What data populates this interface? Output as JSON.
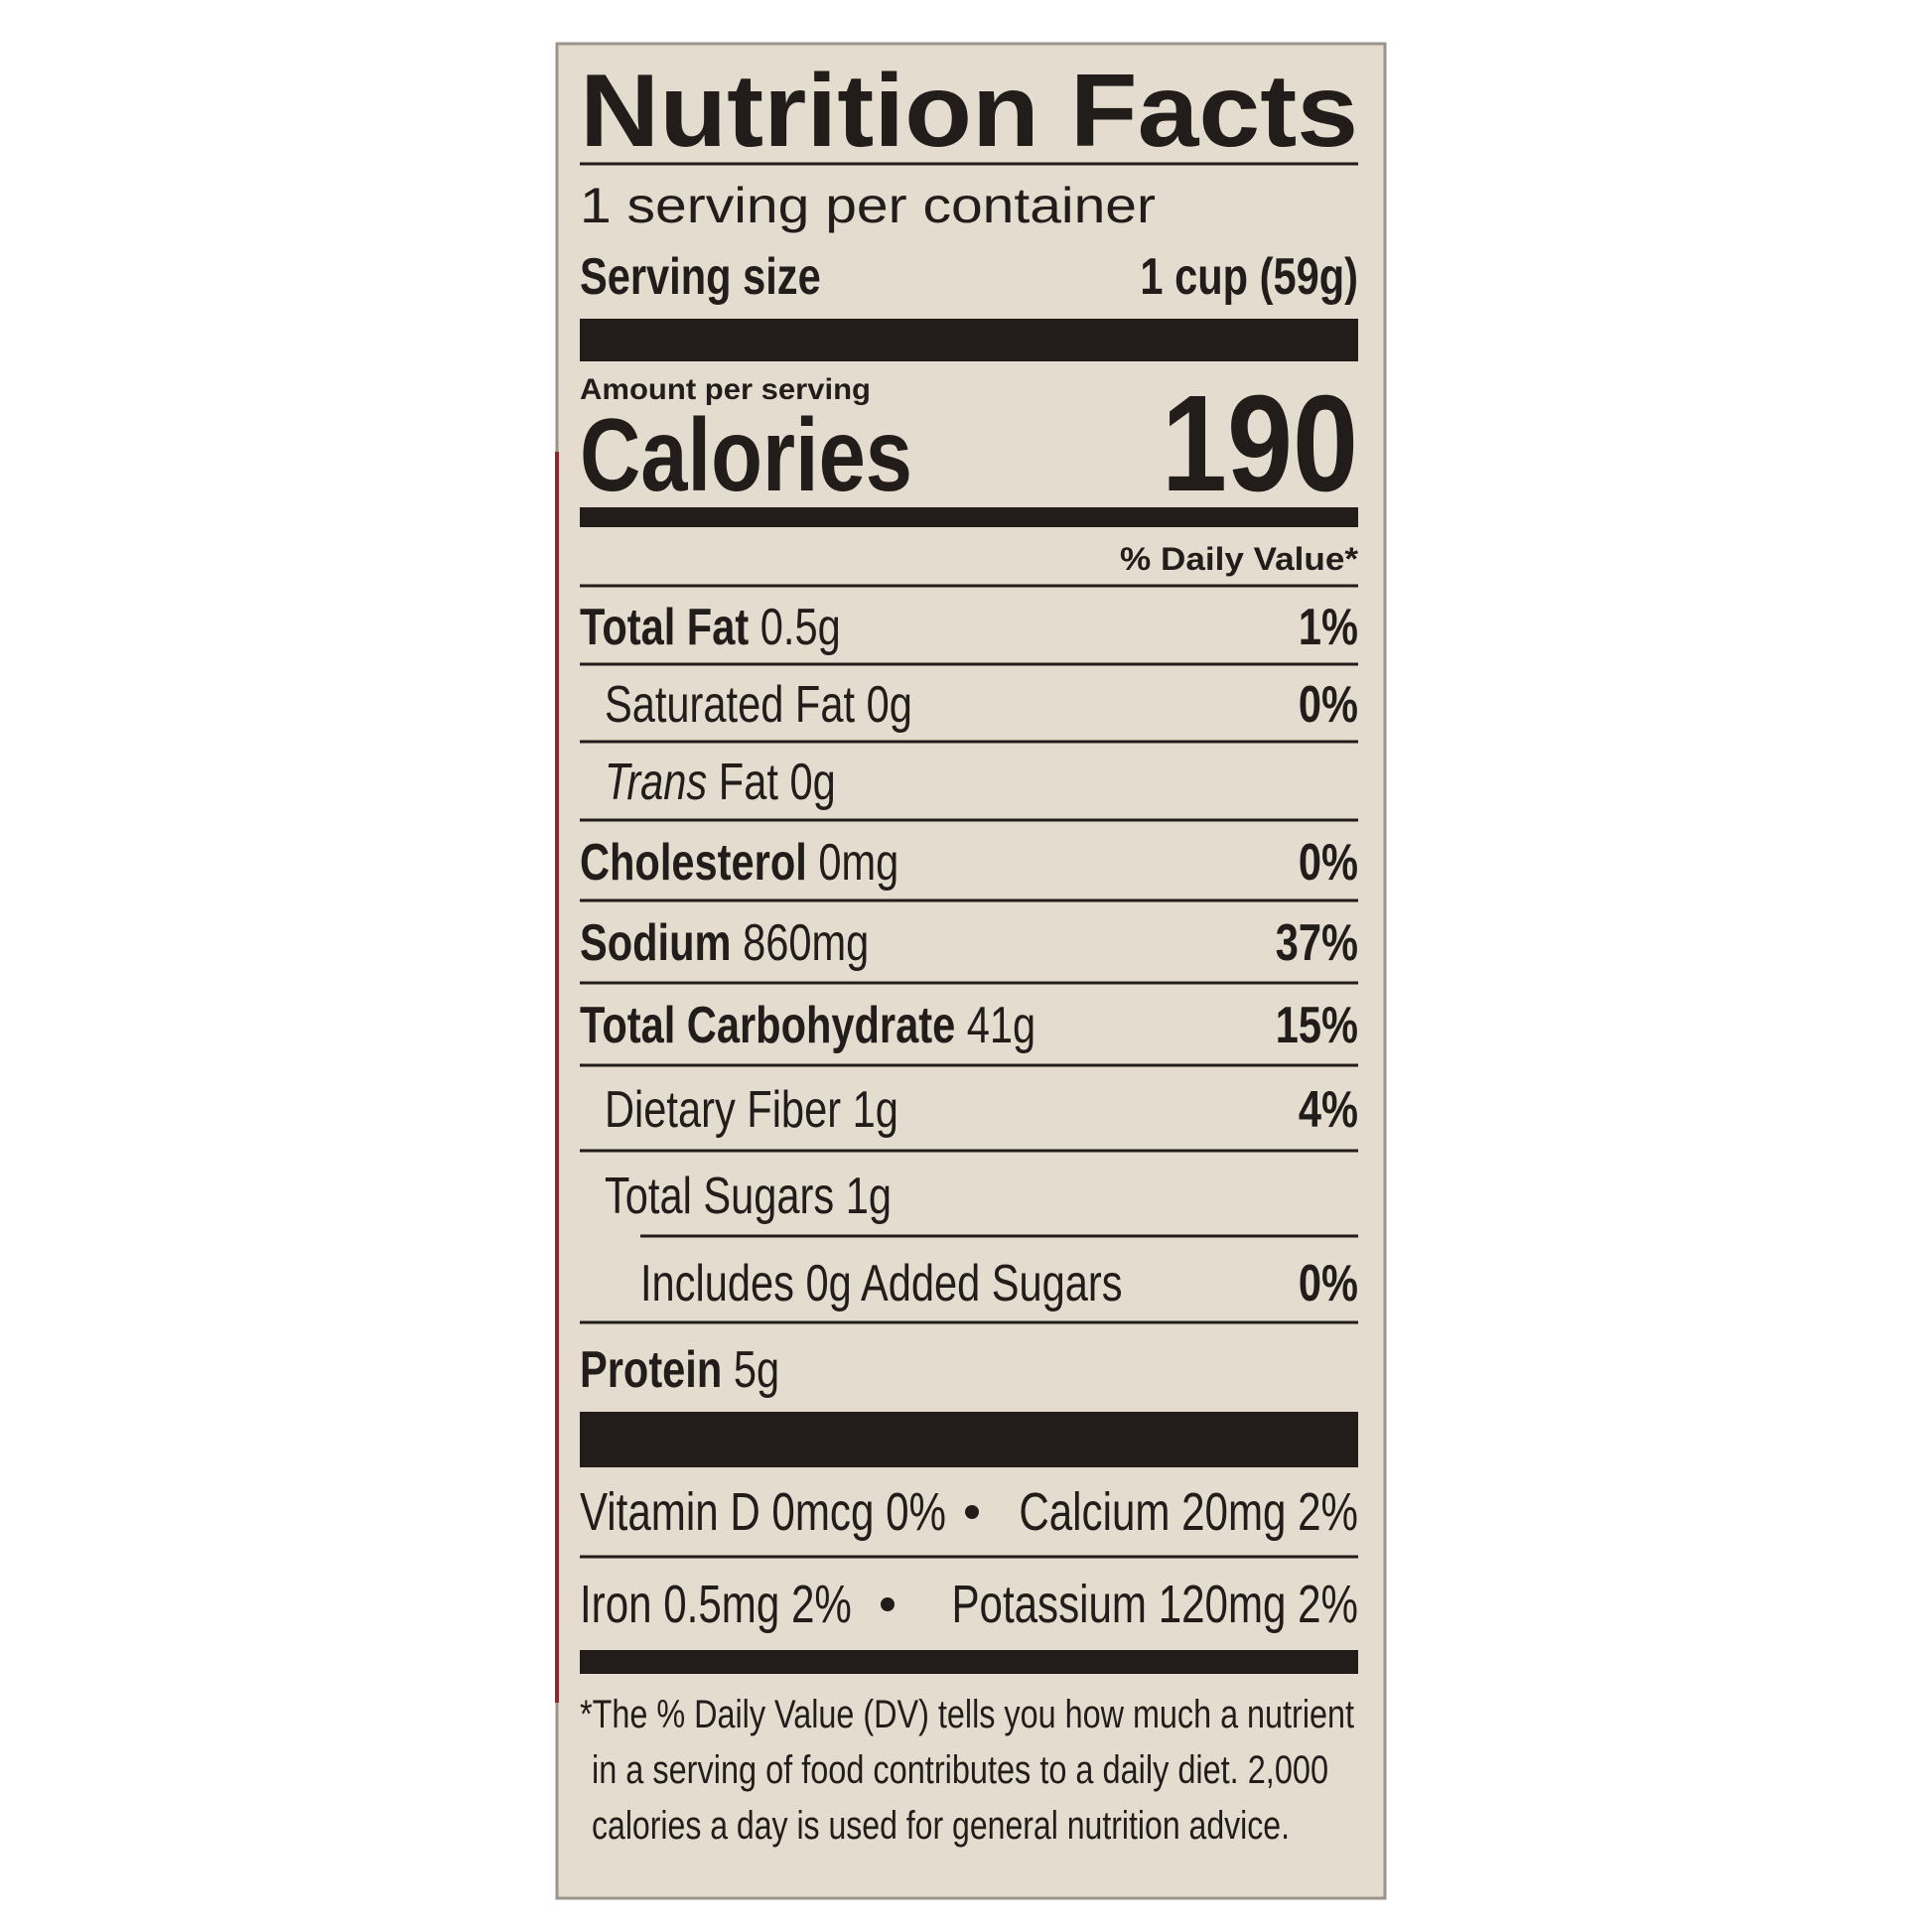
{
  "title": "Nutrition Facts",
  "servings": "1 serving per container",
  "serving_size": {
    "label": "Serving size",
    "value": "1 cup (59g)"
  },
  "amount_per_serving": "Amount per serving",
  "calories": {
    "label": "Calories",
    "value": "190"
  },
  "daily_value_header": "% Daily Value*",
  "rows": [
    {
      "name": "Total Fat",
      "amount": "0.5g",
      "dv": "1%"
    },
    {
      "name": "Saturated Fat",
      "amount": "0g",
      "dv": "0%"
    },
    {
      "italic": "Trans",
      "name": "Fat",
      "amount": "0g"
    },
    {
      "name": "Cholesterol",
      "amount": "0mg",
      "dv": "0%"
    },
    {
      "name": "Sodium",
      "amount": "860mg",
      "dv": "37%"
    },
    {
      "name": "Total Carbohydrate",
      "amount": "41g",
      "dv": "15%"
    },
    {
      "name": "Dietary Fiber",
      "amount": "1g",
      "dv": "4%"
    },
    {
      "name": "Total Sugars",
      "amount": "1g"
    },
    {
      "name": "Includes 0g Added Sugars",
      "dv": "0%"
    },
    {
      "name": "Protein",
      "amount": "5g"
    }
  ],
  "vitamins": [
    [
      "Vitamin D 0mcg 0%",
      "Calcium 20mg 2%"
    ],
    [
      "Iron 0.5mg 2%",
      "Potassium 120mg 2%"
    ]
  ],
  "footnote": [
    "*The % Daily Value (DV) tells you how much a nutrient",
    "in a serving of food contributes to a daily diet. 2,000",
    "calories a day is used for general nutrition advice."
  ]
}
